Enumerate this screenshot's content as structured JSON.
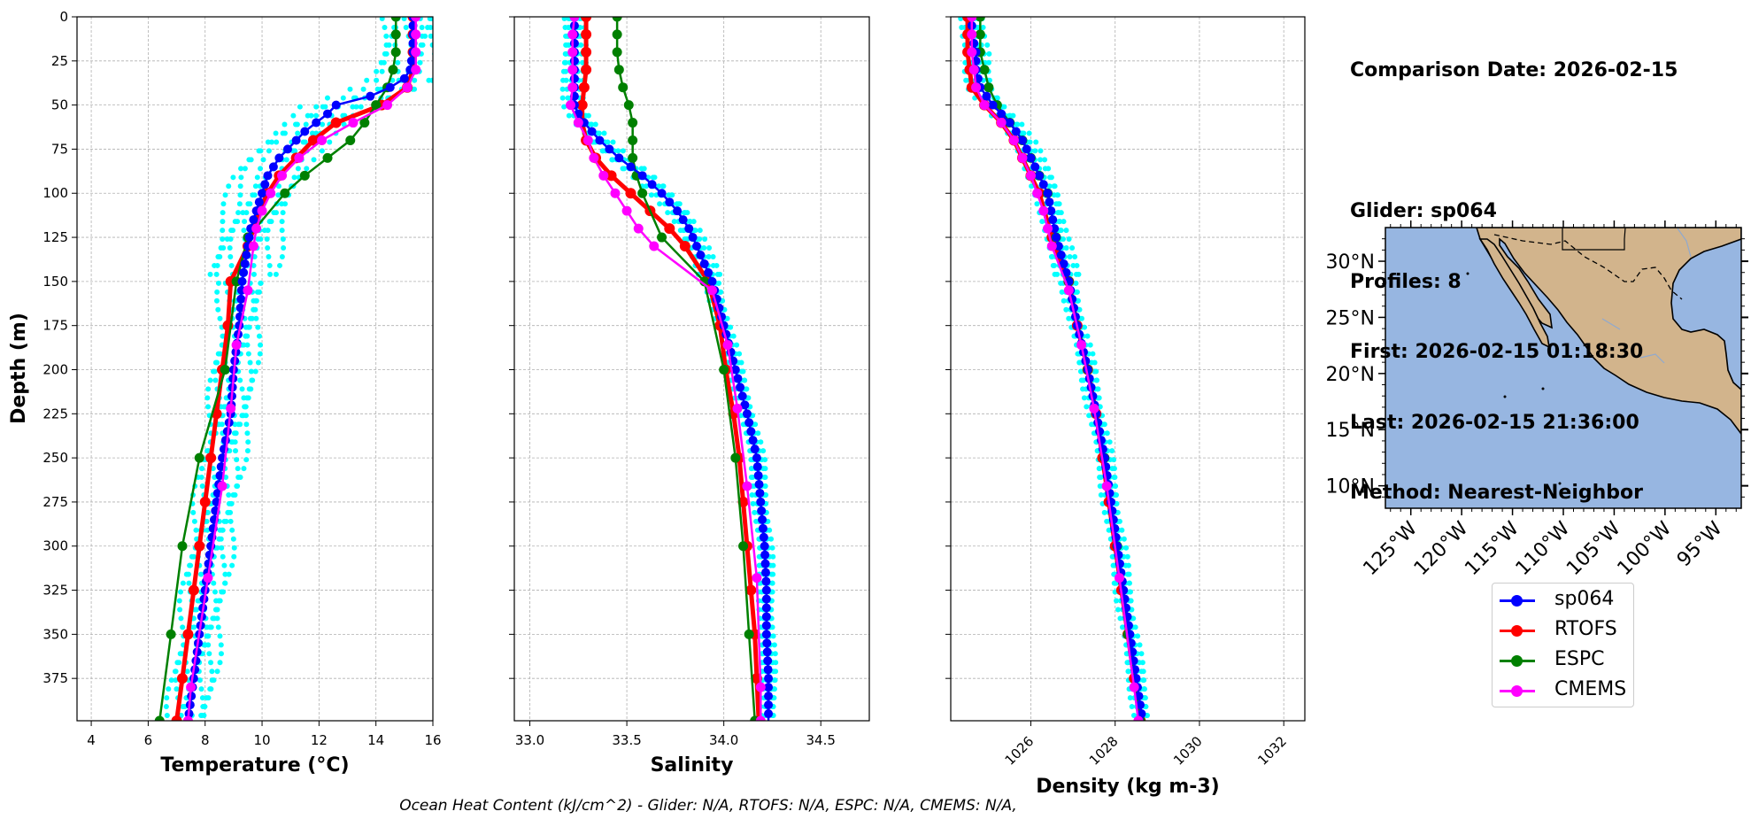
{
  "info": {
    "comparison_date": "Comparison Date: 2026-02-15",
    "glider": "Glider: sp064",
    "profiles": "Profiles: 8",
    "first": "First: 2026-02-15 01:18:30",
    "last": "Last: 2026-02-15 21:36:00",
    "method": "Method: Nearest-Neighbor"
  },
  "ohc_text": "Ocean Heat Content (kJ/cm^2) - Glider: N/A,  RTOFS: N/A,  ESPC: N/A,  CMEMS: N/A,",
  "colors": {
    "sp064": "#0000ff",
    "rtofs": "#ff0000",
    "espc": "#008000",
    "cmems": "#ff00ff",
    "glider_profiles": "#00ffff",
    "ocean": "#97b6e1",
    "land": "#d2b48c",
    "grid": "#b0b0b0"
  },
  "legend": [
    {
      "label": "sp064",
      "color": "#0000ff"
    },
    {
      "label": "RTOFS",
      "color": "#ff0000"
    },
    {
      "label": "ESPC",
      "color": "#008000"
    },
    {
      "label": "CMEMS",
      "color": "#ff00ff"
    }
  ],
  "chart_data": [
    {
      "type": "line",
      "xlabel": "Temperature (°C)",
      "ylabel": "Depth (m)",
      "xlim": [
        3.5,
        16
      ],
      "ylim": [
        399,
        0
      ],
      "xticks": [
        "4",
        "6",
        "8",
        "10",
        "12",
        "14",
        "16"
      ],
      "yticks": [
        "0",
        "25",
        "50",
        "75",
        "100",
        "125",
        "150",
        "175",
        "200",
        "225",
        "250",
        "275",
        "300",
        "325",
        "350",
        "375"
      ],
      "grid": true,
      "series": [
        {
          "name": "sp064",
          "color": "#0000ff",
          "depth": [
            0,
            10,
            20,
            30,
            35,
            40,
            45,
            50,
            55,
            60,
            65,
            70,
            75,
            80,
            85,
            90,
            95,
            100,
            105,
            110,
            115,
            120,
            130,
            150,
            175,
            200,
            225,
            250,
            275,
            300,
            325,
            350,
            375,
            399
          ],
          "values": [
            15.3,
            15.3,
            15.3,
            15.2,
            15.0,
            14.5,
            13.8,
            12.6,
            12.3,
            11.9,
            11.5,
            11.2,
            10.9,
            10.6,
            10.4,
            10.2,
            10.1,
            10.0,
            9.9,
            9.8,
            9.7,
            9.6,
            9.5,
            9.3,
            9.2,
            9.0,
            8.9,
            8.6,
            8.4,
            8.2,
            8.0,
            7.8,
            7.6,
            7.4
          ]
        },
        {
          "name": "RTOFS",
          "color": "#ff0000",
          "depth": [
            0,
            10,
            20,
            30,
            40,
            50,
            60,
            70,
            80,
            90,
            100,
            110,
            120,
            130,
            150,
            175,
            200,
            225,
            250,
            275,
            300,
            325,
            350,
            375,
            399
          ],
          "values": [
            15.3,
            15.3,
            15.3,
            15.3,
            15.1,
            14.2,
            12.6,
            11.8,
            11.2,
            10.6,
            10.2,
            9.9,
            9.7,
            9.5,
            8.9,
            8.8,
            8.6,
            8.4,
            8.2,
            8.0,
            7.8,
            7.6,
            7.4,
            7.2,
            7.0
          ]
        },
        {
          "name": "ESPC",
          "color": "#008000",
          "depth": [
            0,
            10,
            20,
            30,
            40,
            50,
            60,
            70,
            80,
            90,
            100,
            125,
            150,
            200,
            250,
            300,
            350,
            399
          ],
          "values": [
            14.7,
            14.7,
            14.7,
            14.6,
            14.4,
            14.0,
            13.6,
            13.1,
            12.3,
            11.5,
            10.8,
            9.5,
            9.1,
            8.7,
            7.8,
            7.2,
            6.8,
            6.4
          ]
        },
        {
          "name": "CMEMS",
          "color": "#ff00ff",
          "depth": [
            0,
            10,
            20,
            30,
            40,
            50,
            60,
            70,
            80,
            90,
            100,
            110,
            120,
            130,
            155,
            186,
            222,
            266,
            318,
            380,
            399
          ],
          "values": [
            15.4,
            15.4,
            15.4,
            15.4,
            15.1,
            14.4,
            13.2,
            12.1,
            11.3,
            10.7,
            10.3,
            10.0,
            9.8,
            9.7,
            9.5,
            9.1,
            8.9,
            8.6,
            8.1,
            7.5,
            7.4
          ]
        }
      ]
    },
    {
      "type": "line",
      "xlabel": "Salinity",
      "xlim": [
        32.92,
        34.75
      ],
      "ylim": [
        399,
        0
      ],
      "xticks": [
        "33.0",
        "33.5",
        "34.0",
        "34.5"
      ],
      "grid": true,
      "series": [
        {
          "name": "sp064",
          "color": "#0000ff",
          "depth": [
            0,
            10,
            20,
            30,
            40,
            50,
            55,
            60,
            70,
            80,
            90,
            100,
            110,
            120,
            130,
            150,
            175,
            200,
            225,
            250,
            275,
            300,
            325,
            350,
            375,
            399
          ],
          "values": [
            33.23,
            33.23,
            33.23,
            33.23,
            33.23,
            33.23,
            33.25,
            33.28,
            33.36,
            33.46,
            33.58,
            33.68,
            33.76,
            33.82,
            33.86,
            33.94,
            34.0,
            34.06,
            34.12,
            34.17,
            34.19,
            34.21,
            34.22,
            34.22,
            34.23,
            34.23
          ]
        },
        {
          "name": "RTOFS",
          "color": "#ff0000",
          "depth": [
            0,
            10,
            20,
            30,
            40,
            50,
            60,
            70,
            80,
            90,
            100,
            110,
            120,
            130,
            150,
            175,
            200,
            225,
            250,
            275,
            300,
            325,
            350,
            375,
            399
          ],
          "values": [
            33.29,
            33.29,
            33.29,
            33.29,
            33.28,
            33.27,
            33.27,
            33.29,
            33.34,
            33.42,
            33.52,
            33.62,
            33.72,
            33.8,
            33.92,
            33.98,
            34.01,
            34.05,
            34.08,
            34.1,
            34.12,
            34.14,
            34.16,
            34.17,
            34.18
          ]
        },
        {
          "name": "ESPC",
          "color": "#008000",
          "depth": [
            0,
            10,
            20,
            30,
            40,
            50,
            60,
            70,
            80,
            90,
            100,
            125,
            150,
            200,
            250,
            300,
            350,
            399
          ],
          "values": [
            33.45,
            33.45,
            33.45,
            33.46,
            33.48,
            33.51,
            33.53,
            33.53,
            33.53,
            33.55,
            33.58,
            33.68,
            33.9,
            34.0,
            34.06,
            34.1,
            34.13,
            34.16
          ]
        },
        {
          "name": "CMEMS",
          "color": "#ff00ff",
          "depth": [
            0,
            10,
            20,
            30,
            40,
            50,
            60,
            70,
            80,
            90,
            100,
            110,
            120,
            130,
            155,
            186,
            222,
            266,
            318,
            380,
            399
          ],
          "values": [
            33.23,
            33.22,
            33.22,
            33.22,
            33.22,
            33.21,
            33.25,
            33.3,
            33.33,
            33.38,
            33.44,
            33.5,
            33.56,
            33.64,
            33.94,
            34.02,
            34.07,
            34.12,
            34.17,
            34.19,
            34.19
          ]
        }
      ]
    },
    {
      "type": "line",
      "xlabel": "Density (kg m-3)",
      "xlim": [
        1024.1,
        1032.5
      ],
      "ylim": [
        399,
        0
      ],
      "xticks": [
        "1026",
        "1028",
        "1030",
        "1032"
      ],
      "grid": true,
      "series": [
        {
          "name": "sp064",
          "color": "#0000ff",
          "depth": [
            0,
            10,
            20,
            30,
            40,
            50,
            60,
            70,
            80,
            90,
            100,
            125,
            150,
            175,
            200,
            225,
            250,
            275,
            300,
            325,
            350,
            375,
            399
          ],
          "values": [
            1024.6,
            1024.6,
            1024.7,
            1024.7,
            1024.8,
            1025.1,
            1025.5,
            1025.8,
            1026.0,
            1026.2,
            1026.4,
            1026.6,
            1026.9,
            1027.1,
            1027.35,
            1027.55,
            1027.75,
            1027.9,
            1028.05,
            1028.2,
            1028.35,
            1028.5,
            1028.65
          ]
        },
        {
          "name": "RTOFS",
          "color": "#ff0000",
          "depth": [
            0,
            10,
            20,
            30,
            40,
            50,
            60,
            70,
            80,
            90,
            100,
            125,
            150,
            175,
            200,
            225,
            250,
            275,
            300,
            325,
            350,
            375,
            399
          ],
          "values": [
            1024.5,
            1024.5,
            1024.5,
            1024.55,
            1024.6,
            1024.9,
            1025.3,
            1025.6,
            1025.8,
            1026.0,
            1026.2,
            1026.5,
            1026.9,
            1027.1,
            1027.35,
            1027.55,
            1027.7,
            1027.85,
            1028.0,
            1028.15,
            1028.3,
            1028.45,
            1028.6
          ]
        },
        {
          "name": "ESPC",
          "color": "#008000",
          "depth": [
            0,
            10,
            20,
            30,
            40,
            50,
            60,
            70,
            80,
            90,
            100,
            125,
            150,
            200,
            250,
            300,
            350,
            399
          ],
          "values": [
            1024.8,
            1024.8,
            1024.8,
            1024.9,
            1025.0,
            1025.2,
            1025.5,
            1025.8,
            1026.0,
            1026.2,
            1026.4,
            1026.6,
            1026.9,
            1027.35,
            1027.75,
            1028.05,
            1028.3,
            1028.6
          ]
        },
        {
          "name": "CMEMS",
          "color": "#ff00ff",
          "depth": [
            0,
            10,
            20,
            30,
            40,
            50,
            60,
            70,
            80,
            90,
            100,
            110,
            120,
            130,
            155,
            186,
            222,
            266,
            318,
            380,
            399
          ],
          "values": [
            1024.6,
            1024.6,
            1024.6,
            1024.65,
            1024.7,
            1024.9,
            1025.3,
            1025.6,
            1025.8,
            1026.0,
            1026.15,
            1026.3,
            1026.4,
            1026.5,
            1026.9,
            1027.2,
            1027.5,
            1027.8,
            1028.1,
            1028.45,
            1028.55
          ]
        }
      ]
    }
  ],
  "map": {
    "lat_labels": [
      "30°N",
      "25°N",
      "20°N",
      "15°N",
      "10°N"
    ],
    "lon_labels": [
      "125°W",
      "120°W",
      "115°W",
      "110°W",
      "105°W",
      "100°W",
      "95°W"
    ]
  }
}
